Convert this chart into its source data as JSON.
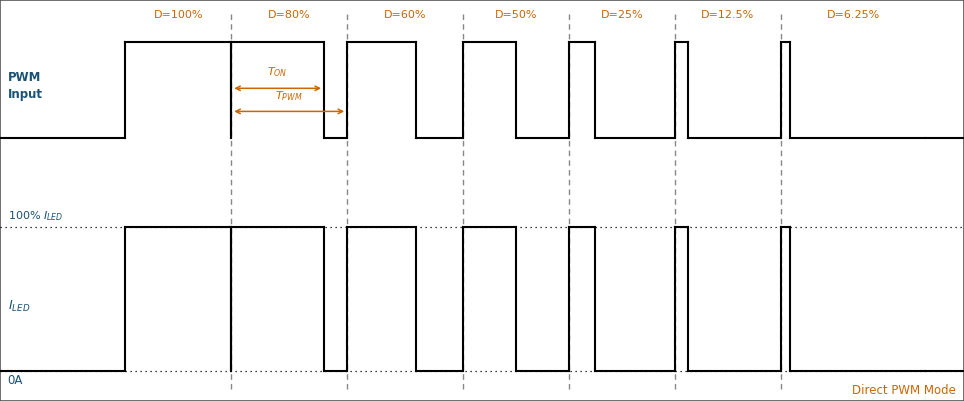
{
  "duty_labels": [
    "D=100%",
    "D=80%",
    "D=60%",
    "D=50%",
    "D=25%",
    "D=12.5%",
    "D=6.25%"
  ],
  "duty_label_color": "#cc6600",
  "pwm_label_color": "#1a5276",
  "signal_color": "#000000",
  "dashed_color": "#888888",
  "annotation_color": "#cc6600",
  "direct_pwm_color": "#cc6600",
  "background_color": "#ffffff",
  "figsize": [
    9.64,
    4.01
  ],
  "dpi": 100,
  "seg_starts": [
    13,
    24,
    36,
    48,
    59,
    70,
    81
  ],
  "seg_ends": [
    24,
    36,
    48,
    59,
    70,
    81,
    96
  ],
  "duties": [
    1.0,
    0.8,
    0.6,
    0.5,
    0.25,
    0.125,
    0.0625
  ],
  "pwm_high": 0.895,
  "pwm_low": 0.655,
  "iled_high": 0.435,
  "iled_zero": 0.075,
  "x_min": 0,
  "x_max": 100
}
